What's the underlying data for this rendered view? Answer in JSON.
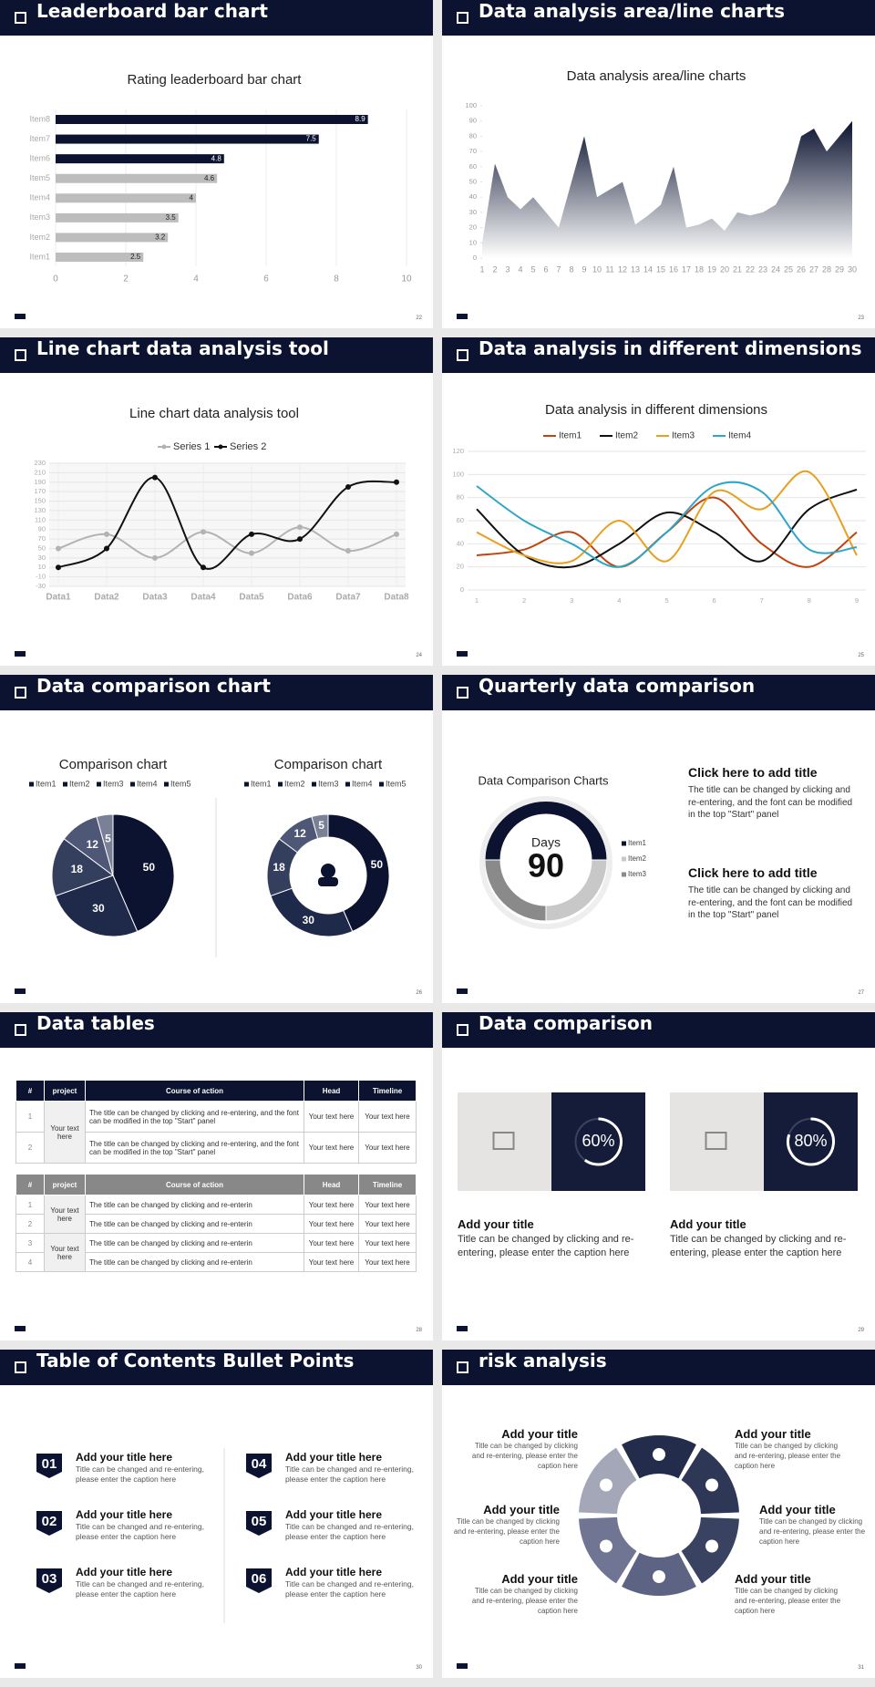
{
  "slides": [
    {
      "title": "Leaderboard bar chart",
      "page": "22"
    },
    {
      "title": "Data analysis area/line charts",
      "page": "23"
    },
    {
      "title": "Line chart data analysis tool",
      "page": "24"
    },
    {
      "title": "Data analysis in different dimensions",
      "page": "25"
    },
    {
      "title": "Data comparison chart",
      "page": "26"
    },
    {
      "title": "Quarterly data comparison",
      "page": "27"
    },
    {
      "title": "Data tables",
      "page": "28"
    },
    {
      "title": "Data comparison",
      "page": "29"
    },
    {
      "title": "Table of Contents Bullet Points",
      "page": "30"
    },
    {
      "title": "risk analysis",
      "page": "31"
    }
  ],
  "chart_data": [
    {
      "type": "bar",
      "orientation": "horizontal",
      "title": "Rating leaderboard bar chart",
      "categories": [
        "Item1",
        "Item2",
        "Item3",
        "Item4",
        "Item5",
        "Item6",
        "Item7",
        "Item8"
      ],
      "values": [
        2.5,
        3.2,
        3.5,
        4,
        4.6,
        4.8,
        7.5,
        8.9
      ],
      "colors": [
        "#bdbdbd",
        "#bdbdbd",
        "#bdbdbd",
        "#bdbdbd",
        "#bdbdbd",
        "#0b1330",
        "#0b1330",
        "#0b1330"
      ],
      "xlim": [
        0,
        10
      ],
      "xticks": [
        0,
        2,
        4,
        6,
        8,
        10
      ],
      "grid": true
    },
    {
      "type": "area",
      "title": "Data analysis area/line charts",
      "x": [
        1,
        2,
        3,
        4,
        5,
        6,
        7,
        8,
        9,
        10,
        11,
        12,
        13,
        14,
        15,
        16,
        17,
        18,
        19,
        20,
        21,
        22,
        23,
        24,
        25,
        26,
        27,
        28,
        29,
        30
      ],
      "values": [
        10,
        62,
        40,
        32,
        40,
        30,
        20,
        50,
        80,
        40,
        45,
        50,
        22,
        28,
        35,
        60,
        20,
        22,
        26,
        18,
        30,
        28,
        30,
        35,
        50,
        80,
        85,
        70,
        80,
        90
      ],
      "color": "#0b1330",
      "xlim": [
        1,
        30
      ],
      "xticks": [
        1,
        2,
        3,
        4,
        5,
        6,
        7,
        8,
        9,
        10,
        11,
        12,
        13,
        14,
        15,
        16,
        17,
        18,
        19,
        20,
        21,
        22,
        23,
        24,
        25,
        26,
        27,
        28,
        29,
        30
      ],
      "ylim": [
        0,
        100
      ],
      "yticks": [
        0,
        10,
        20,
        30,
        40,
        50,
        60,
        70,
        80,
        90,
        100
      ]
    },
    {
      "type": "line",
      "smooth": true,
      "title": "Line chart data analysis tool",
      "categories": [
        "Data1",
        "Data2",
        "Data3",
        "Data4",
        "Data5",
        "Data6",
        "Data7",
        "Data8"
      ],
      "series": [
        {
          "name": "Series 1",
          "color": "#b3b3b3",
          "values": [
            50,
            80,
            30,
            85,
            40,
            95,
            45,
            80
          ]
        },
        {
          "name": "Series 2",
          "color": "#111111",
          "values": [
            10,
            50,
            200,
            10,
            80,
            70,
            180,
            190
          ]
        }
      ],
      "ylim": [
        -30,
        230
      ],
      "yticks": [
        -30,
        -10,
        10,
        30,
        50,
        70,
        90,
        110,
        130,
        150,
        170,
        190,
        210,
        230
      ],
      "grid": true,
      "markers": true
    },
    {
      "type": "line",
      "smooth": true,
      "title": "Data analysis in different dimensions",
      "x": [
        1,
        2,
        3,
        4,
        5,
        6,
        7,
        8,
        9
      ],
      "series": [
        {
          "name": "Item1",
          "color": "#c0440f",
          "values": [
            30,
            35,
            50,
            20,
            50,
            80,
            40,
            20,
            50
          ]
        },
        {
          "name": "Item2",
          "color": "#111111",
          "values": [
            70,
            30,
            20,
            40,
            67,
            50,
            25,
            70,
            87
          ]
        },
        {
          "name": "Item3",
          "color": "#e8a020",
          "values": [
            50,
            30,
            25,
            60,
            25,
            85,
            70,
            102,
            30
          ]
        },
        {
          "name": "Item4",
          "color": "#2ea6c8",
          "values": [
            90,
            60,
            40,
            20,
            50,
            90,
            85,
            35,
            37
          ]
        }
      ],
      "xlim": [
        1,
        9
      ],
      "xticks": [
        1,
        2,
        3,
        4,
        5,
        6,
        7,
        8,
        9
      ],
      "ylim": [
        0,
        120
      ],
      "yticks": [
        0,
        20,
        40,
        60,
        80,
        100,
        120
      ],
      "grid": true,
      "markers": false
    },
    {
      "type": "pie",
      "title": "Comparison chart",
      "categories": [
        "Item1",
        "Item2",
        "Item3",
        "Item4",
        "Item5"
      ],
      "values": [
        50,
        30,
        18,
        12,
        5
      ],
      "colors": [
        "#0b1330",
        "#1f2a4a",
        "#343f5e",
        "#4e5775",
        "#7a8095"
      ]
    },
    {
      "type": "donut",
      "title": "Comparison chart",
      "categories": [
        "Item1",
        "Item2",
        "Item3",
        "Item4",
        "Item5"
      ],
      "values": [
        50,
        30,
        18,
        12,
        5
      ],
      "colors": [
        "#0b1330",
        "#1f2a4a",
        "#343f5e",
        "#4e5775",
        "#7a8095"
      ]
    },
    {
      "type": "donut",
      "title": "Data Comparison Charts",
      "center_label": "Days",
      "center_value": 90,
      "categories": [
        "Item1",
        "Item2",
        "Item3"
      ],
      "values": [
        50,
        25,
        25
      ],
      "colors": [
        "#0b1330",
        "#c8c8c8",
        "#8a8a8a"
      ]
    }
  ],
  "quarterly": [
    {
      "title": "Click here to add title",
      "text": "The title can be changed by clicking and re-entering, and the font can be modified in the top \"Start\" panel"
    },
    {
      "title": "Click here to add title",
      "text": "The title can be changed by clicking and re-entering, and the font can be modified in the top \"Start\" panel"
    }
  ],
  "tables": [
    {
      "header": [
        "#",
        "project",
        "Course of action",
        "Head",
        "Timeline"
      ],
      "groups": [
        {
          "project": "Your text here",
          "rows": [
            [
              "1",
              "The title can be changed by clicking and re-entering, and the font can be modified in the top \"Start\" panel",
              "Your text here",
              "Your text here"
            ],
            [
              "2",
              "The title can be changed by clicking and re-entering, and the font can be modified in the top \"Start\" panel",
              "Your text here",
              "Your text here"
            ]
          ]
        }
      ]
    },
    {
      "header": [
        "#",
        "project",
        "Course of action",
        "Head",
        "Timeline"
      ],
      "groups": [
        {
          "project": "Your text here",
          "rows": [
            [
              "1",
              "The title can be changed by clicking and re-enterin",
              "Your text here",
              "Your text here"
            ],
            [
              "2",
              "The title can be changed by clicking and re-enterin",
              "Your text here",
              "Your text here"
            ]
          ]
        },
        {
          "project": "Your text here",
          "rows": [
            [
              "3",
              "The title can be changed by clicking and re-enterin",
              "Your text here",
              "Your text here"
            ],
            [
              "4",
              "The title can be changed by clicking and re-enterin",
              "Your text here",
              "Your text here"
            ]
          ]
        }
      ]
    }
  ],
  "comparison": [
    {
      "value": 60,
      "label": "60%",
      "title": "Add your title",
      "text": "Title can be changed by clicking and re-entering, please enter the caption here"
    },
    {
      "value": 80,
      "label": "80%",
      "title": "Add your title",
      "text": "Title can be changed by clicking and re-entering, please enter the caption here"
    }
  ],
  "toc": [
    {
      "num": "01",
      "title": "Add your title here",
      "text": "Title can be changed and re-entering, please enter the caption here"
    },
    {
      "num": "02",
      "title": "Add your title here",
      "text": "Title can be changed and re-entering, please enter the caption here"
    },
    {
      "num": "03",
      "title": "Add your title here",
      "text": "Title can be changed and re-entering, please enter the caption here"
    },
    {
      "num": "04",
      "title": "Add your title here",
      "text": "Title can be changed and re-entering, please enter the caption here"
    },
    {
      "num": "05",
      "title": "Add your title here",
      "text": "Title can be changed and re-entering, please enter the caption here"
    },
    {
      "num": "06",
      "title": "Add your title here",
      "text": "Title can be changed and re-entering, please enter the caption here"
    }
  ],
  "risk": [
    {
      "title": "Add your title",
      "text": "Title can be changed by clicking and re-entering, please enter the caption here"
    },
    {
      "title": "Add your title",
      "text": "Title can be changed by clicking and re-entering, please enter the caption here"
    },
    {
      "title": "Add your title",
      "text": "Title can be changed by clicking and re-entering, please enter the caption here"
    },
    {
      "title": "Add your title",
      "text": "Title can be changed by clicking and re-entering, please enter the caption here"
    },
    {
      "title": "Add your title",
      "text": "Title can be changed by clicking and re-entering, please enter the caption here"
    },
    {
      "title": "Add your title",
      "text": "Title can be changed by clicking and re-entering, please enter the caption here"
    }
  ]
}
